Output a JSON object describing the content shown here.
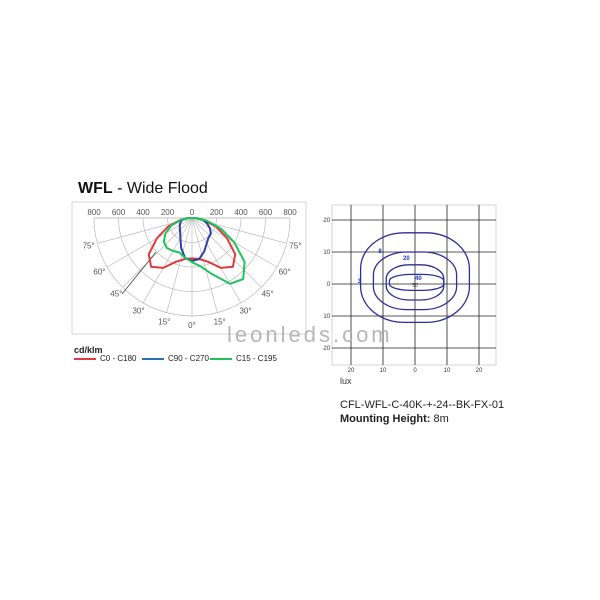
{
  "title": {
    "bold": "WFL",
    "rest": " - Wide Flood"
  },
  "watermark": "leonleds.com",
  "chart_data": [
    {
      "type": "polar",
      "unit": "cd/klm",
      "radial_ticks": [
        800,
        600,
        400,
        200,
        0,
        200,
        400,
        600,
        800
      ],
      "radial_max": 800,
      "angle_labels": [
        "75°",
        "60°",
        "45°",
        "30°",
        "15°",
        "0°",
        "15°",
        "30°",
        "45°",
        "60°",
        "75°"
      ],
      "angles": [
        0,
        10,
        20,
        30,
        40,
        50,
        60,
        70,
        80,
        90
      ],
      "series": [
        {
          "name": "C0 - C180",
          "color": "#e03a3e",
          "left": [
            330,
            340,
            380,
            470,
            520,
            460,
            330,
            210,
            100,
            30
          ],
          "right": [
            330,
            340,
            380,
            470,
            520,
            460,
            330,
            210,
            100,
            30
          ]
        },
        {
          "name": "C90 - C270",
          "color": "#2b3fa8",
          "left": [
            350,
            330,
            260,
            190,
            150,
            130,
            115,
            100,
            80,
            30
          ],
          "right": [
            350,
            340,
            290,
            240,
            210,
            200,
            170,
            130,
            90,
            30
          ]
        },
        {
          "name": "C15 - C195",
          "color": "#1fc35c",
          "left": [
            360,
            330,
            300,
            310,
            320,
            300,
            250,
            180,
            90,
            25
          ],
          "right": [
            360,
            400,
            490,
            620,
            650,
            560,
            400,
            250,
            120,
            30
          ]
        }
      ]
    },
    {
      "type": "contour",
      "unit": "lux",
      "x_ticks": [
        20,
        10,
        0,
        10,
        20
      ],
      "y_ticks": [
        20,
        10,
        0,
        10,
        20
      ],
      "range": [
        -25,
        25
      ],
      "levels": [
        {
          "label": "3",
          "x": [
            -17,
            17
          ],
          "y": [
            -12,
            16
          ]
        },
        {
          "label": "8",
          "x": [
            -13,
            13
          ],
          "y": [
            -8,
            10
          ]
        },
        {
          "label": "20",
          "x": [
            -9,
            9
          ],
          "y": [
            -5,
            6
          ]
        },
        {
          "label": "40",
          "x": [
            -8,
            9
          ],
          "y": [
            -2,
            3
          ]
        }
      ],
      "center_label": "50",
      "line_color": "#2b2f9a"
    }
  ],
  "info": {
    "model": "CFL-WFL-C-40K-+-24--BK-FX-01",
    "mount_label": "Mounting Height:",
    "mount_value": " 8m"
  }
}
